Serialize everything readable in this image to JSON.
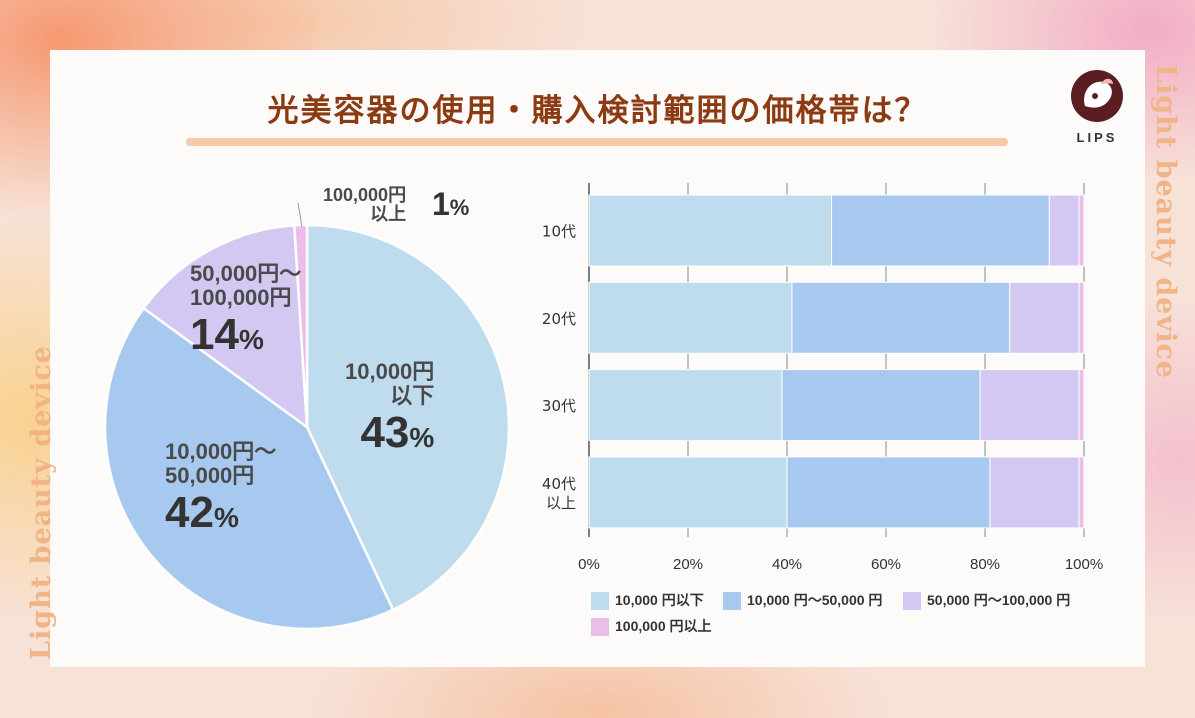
{
  "title": "光美容器の使用・購入検討範囲の価格帯は？",
  "side_text": "Light beauty device",
  "logo_text": "LIPS",
  "colors": {
    "band1": "#bfdcef",
    "band2": "#a8c9ef",
    "band3": "#d3c8f1",
    "band4": "#ebbde9",
    "title": "#8c3a12"
  },
  "pie_labels": [
    {
      "label1": "10,000円",
      "label2": "以下",
      "pct": "43",
      "unit": "%"
    },
    {
      "label1": "10,000円～",
      "label2": "50,000円",
      "pct": "42",
      "unit": "%"
    },
    {
      "label1": "50,000円～",
      "label2": "100,000円",
      "pct": "14",
      "unit": "%"
    },
    {
      "label1": "100,000円",
      "label2": "以上",
      "pct": "1",
      "unit": "%"
    }
  ],
  "legend": [
    "10,000 円以下",
    "10,000 円～50,000 円",
    "50,000 円～100,000 円",
    "100,000 円以上"
  ],
  "chart_data": [
    {
      "type": "pie",
      "categories": [
        "10,000円以下",
        "10,000円～50,000円",
        "50,000円～100,000円",
        "100,000円以上"
      ],
      "values": [
        43,
        42,
        14,
        1
      ],
      "unit": "%"
    },
    {
      "type": "bar",
      "orientation": "horizontal",
      "stacked": true,
      "categories": [
        "10代",
        "20代",
        "30代",
        "40代\n以上"
      ],
      "series": [
        {
          "name": "10,000 円以下",
          "values": [
            49,
            41,
            39,
            40
          ]
        },
        {
          "name": "10,000 円～50,000 円",
          "values": [
            44,
            44,
            40,
            41
          ]
        },
        {
          "name": "50,000 円～100,000 円",
          "values": [
            6,
            14,
            20,
            18
          ]
        },
        {
          "name": "100,000 円以上",
          "values": [
            1,
            1,
            1,
            1
          ]
        }
      ],
      "xlim": [
        0,
        100
      ],
      "xticks": [
        "0%",
        "20%",
        "40%",
        "60%",
        "80%",
        "100%"
      ],
      "grid": true,
      "legend_position": "bottom"
    }
  ]
}
